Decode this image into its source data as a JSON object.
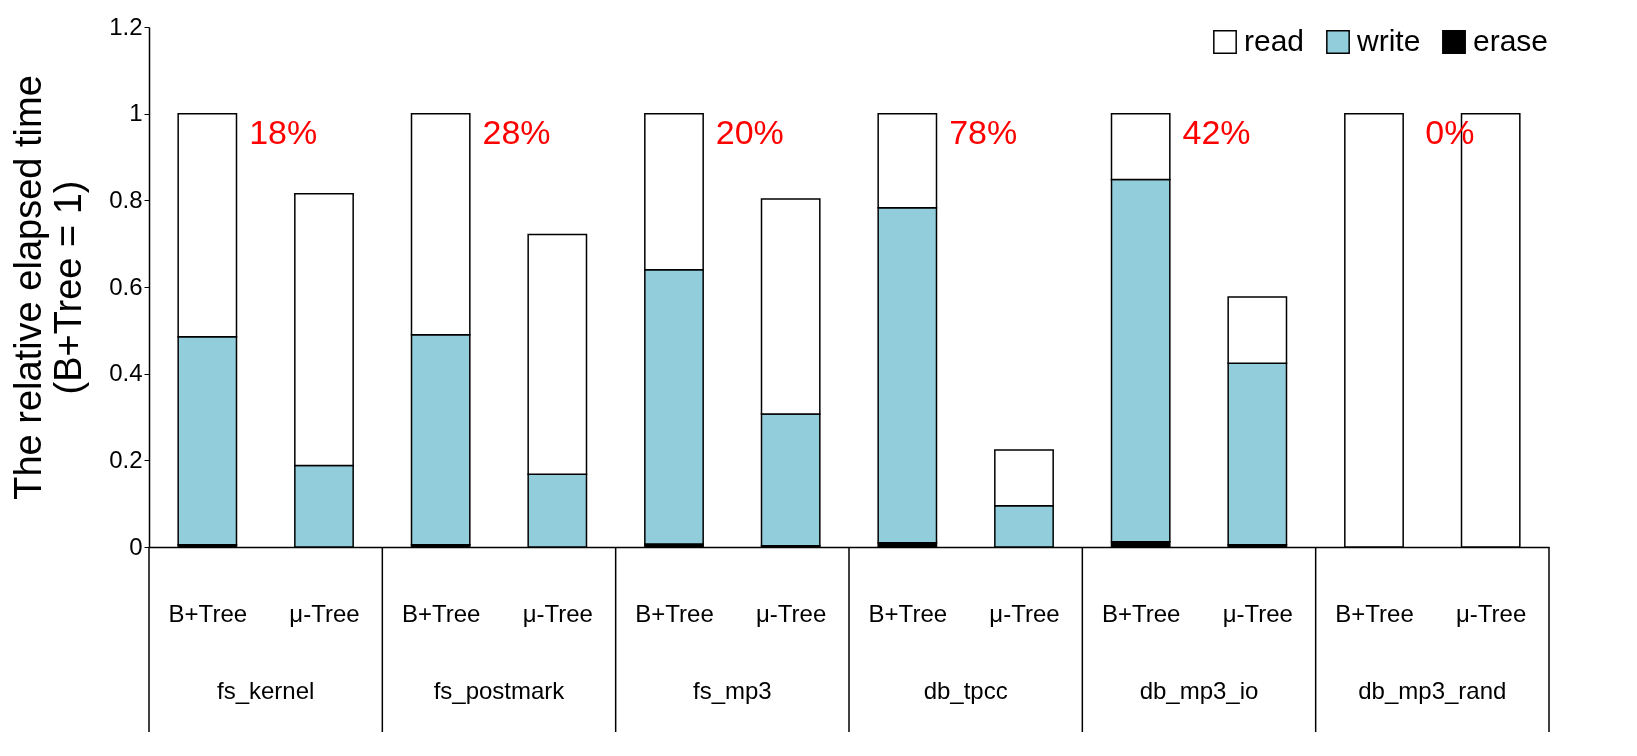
{
  "chart_data": {
    "type": "bar",
    "stacked": true,
    "ylabel": "The relative elapsed time\n(B+Tree = 1)",
    "categories": [
      "B+Tree",
      "μ-Tree",
      "B+Tree",
      "μ-Tree",
      "B+Tree",
      "μ-Tree",
      "B+Tree",
      "μ-Tree",
      "B+Tree",
      "μ-Tree",
      "B+Tree",
      "μ-Tree"
    ],
    "series": [
      {
        "name": "erase",
        "color": "#000000",
        "values": [
          0.005,
          null,
          0.005,
          null,
          0.007,
          0.003,
          0.01,
          null,
          0.012,
          0.005,
          0,
          0
        ]
      },
      {
        "name": "write",
        "color": "#92cddc",
        "values": [
          0.48,
          0.188,
          0.485,
          0.168,
          0.633,
          0.304,
          0.773,
          0.095,
          0.836,
          0.419,
          0,
          0
        ]
      },
      {
        "name": "read",
        "color": "#ffffff",
        "values": [
          0.515,
          0.627,
          0.51,
          0.553,
          0.36,
          0.496,
          0.217,
          0.129,
          0.152,
          0.153,
          1,
          1
        ]
      }
    ],
    "ylim": [
      0,
      1.2
    ],
    "yticks": [
      {
        "value": 0,
        "label": "0"
      },
      0.2,
      0.4,
      0.6,
      0.8,
      {
        "value": 1,
        "label": "1"
      },
      1.2
    ],
    "grid": false,
    "legend": "top right",
    "annotations": [
      "fs_kernel",
      "fs_postmark",
      "fs_mp3",
      "db_tpcc",
      "db_mp3_io",
      "db_mp3_rand",
      "18%",
      "28%",
      "20%",
      "78%",
      "42%",
      "0%"
    ]
  }
}
